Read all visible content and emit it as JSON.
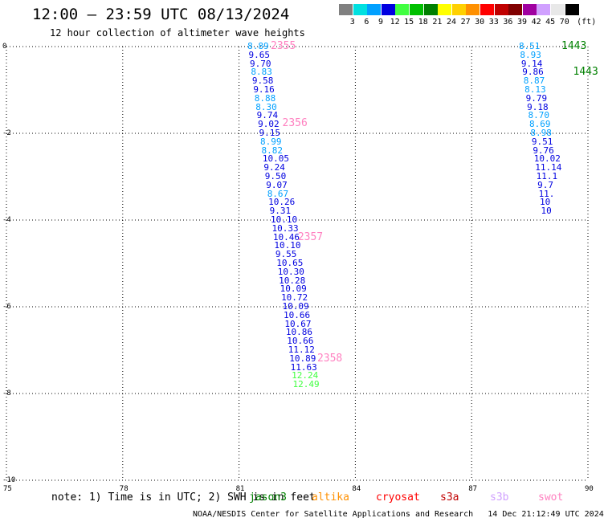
{
  "title": "12:00 — 23:59 UTC 08/13/2024",
  "subtitle": "12 hour collection of altimeter wave heights",
  "legend": {
    "unit": "(ft)",
    "bins": [
      {
        "label": "3",
        "color": "#808080"
      },
      {
        "label": "6",
        "color": "#00e0e0"
      },
      {
        "label": "9",
        "color": "#00a0ff"
      },
      {
        "label": "12",
        "color": "#0000e0"
      },
      {
        "label": "15",
        "color": "#40ff40"
      },
      {
        "label": "18",
        "color": "#00c000"
      },
      {
        "label": "21",
        "color": "#008000"
      },
      {
        "label": "24",
        "color": "#ffff00"
      },
      {
        "label": "27",
        "color": "#ffd000"
      },
      {
        "label": "30",
        "color": "#ff9000"
      },
      {
        "label": "33",
        "color": "#ff0000"
      },
      {
        "label": "36",
        "color": "#c00000"
      },
      {
        "label": "39",
        "color": "#800000"
      },
      {
        "label": "42",
        "color": "#a000a0"
      },
      {
        "label": "45",
        "color": "#d0a0ff"
      },
      {
        "label": "70",
        "color": "#e8e8e8"
      },
      {
        "label": "",
        "color": "#000000"
      }
    ]
  },
  "map": {
    "lon_range": [
      75,
      90
    ],
    "lat_range": [
      -10,
      0
    ],
    "x_ticks": [
      {
        "value": 75,
        "label": "75"
      },
      {
        "value": 78,
        "label": "78"
      },
      {
        "value": 81,
        "label": "81"
      },
      {
        "value": 84,
        "label": "84"
      },
      {
        "value": 87,
        "label": "87"
      },
      {
        "value": 90,
        "label": "90"
      }
    ],
    "y_ticks": [
      {
        "value": 0,
        "label": "0"
      },
      {
        "value": -2,
        "label": "-2"
      },
      {
        "value": -4,
        "label": "-4"
      },
      {
        "value": -6,
        "label": "-6"
      },
      {
        "value": -8,
        "label": "-8"
      },
      {
        "value": -10,
        "label": "-10"
      }
    ],
    "tracks": [
      {
        "color_key": "track_a",
        "points": [
          {
            "lon": 81.3,
            "lat": 0.0,
            "v": "8.89",
            "c": "#00a0ff"
          },
          {
            "lon": 81.33,
            "lat": -0.2,
            "v": "9.65",
            "c": "#0000e0"
          },
          {
            "lon": 81.36,
            "lat": -0.4,
            "v": "9.70",
            "c": "#0000e0"
          },
          {
            "lon": 81.39,
            "lat": -0.6,
            "v": "8.83",
            "c": "#00a0ff"
          },
          {
            "lon": 81.42,
            "lat": -0.8,
            "v": "9.58",
            "c": "#0000e0"
          },
          {
            "lon": 81.45,
            "lat": -1.0,
            "v": "9.16",
            "c": "#0000e0"
          },
          {
            "lon": 81.48,
            "lat": -1.2,
            "v": "8.88",
            "c": "#00a0ff"
          },
          {
            "lon": 81.51,
            "lat": -1.4,
            "v": "8.30",
            "c": "#00a0ff"
          },
          {
            "lon": 81.54,
            "lat": -1.6,
            "v": "9.74",
            "c": "#0000e0"
          },
          {
            "lon": 81.57,
            "lat": -1.8,
            "v": "9.02",
            "c": "#0000e0"
          },
          {
            "lon": 81.6,
            "lat": -2.0,
            "v": "9.15",
            "c": "#0000e0"
          },
          {
            "lon": 81.63,
            "lat": -2.2,
            "v": "8.99",
            "c": "#00a0ff"
          },
          {
            "lon": 81.66,
            "lat": -2.4,
            "v": "8.82",
            "c": "#00a0ff"
          },
          {
            "lon": 81.69,
            "lat": -2.6,
            "v": "10.05",
            "c": "#0000e0"
          },
          {
            "lon": 81.72,
            "lat": -2.8,
            "v": "9.24",
            "c": "#0000e0"
          },
          {
            "lon": 81.75,
            "lat": -3.0,
            "v": "9.50",
            "c": "#0000e0"
          },
          {
            "lon": 81.78,
            "lat": -3.2,
            "v": "9.07",
            "c": "#0000e0"
          },
          {
            "lon": 81.81,
            "lat": -3.4,
            "v": "8.67",
            "c": "#00a0ff"
          },
          {
            "lon": 81.84,
            "lat": -3.6,
            "v": "10.26",
            "c": "#0000e0"
          },
          {
            "lon": 81.87,
            "lat": -3.8,
            "v": "9.31",
            "c": "#0000e0"
          },
          {
            "lon": 81.9,
            "lat": -4.0,
            "v": "10.10",
            "c": "#0000e0"
          },
          {
            "lon": 81.93,
            "lat": -4.2,
            "v": "10.33",
            "c": "#0000e0"
          },
          {
            "lon": 81.96,
            "lat": -4.4,
            "v": "10.46",
            "c": "#0000e0"
          },
          {
            "lon": 81.99,
            "lat": -4.6,
            "v": "10.10",
            "c": "#0000e0"
          },
          {
            "lon": 82.02,
            "lat": -4.8,
            "v": "9.55",
            "c": "#0000e0"
          },
          {
            "lon": 82.05,
            "lat": -5.0,
            "v": "10.65",
            "c": "#0000e0"
          },
          {
            "lon": 82.08,
            "lat": -5.2,
            "v": "10.30",
            "c": "#0000e0"
          },
          {
            "lon": 82.11,
            "lat": -5.4,
            "v": "10.28",
            "c": "#0000e0"
          },
          {
            "lon": 82.14,
            "lat": -5.6,
            "v": "10.09",
            "c": "#0000e0"
          },
          {
            "lon": 82.17,
            "lat": -5.8,
            "v": "10.72",
            "c": "#0000e0"
          },
          {
            "lon": 82.2,
            "lat": -6.0,
            "v": "10.09",
            "c": "#0000e0"
          },
          {
            "lon": 82.23,
            "lat": -6.2,
            "v": "10.66",
            "c": "#0000e0"
          },
          {
            "lon": 82.26,
            "lat": -6.4,
            "v": "10.67",
            "c": "#0000e0"
          },
          {
            "lon": 82.29,
            "lat": -6.6,
            "v": "10.86",
            "c": "#0000e0"
          },
          {
            "lon": 82.32,
            "lat": -6.8,
            "v": "10.66",
            "c": "#0000e0"
          },
          {
            "lon": 82.35,
            "lat": -7.0,
            "v": "11.12",
            "c": "#0000e0"
          },
          {
            "lon": 82.38,
            "lat": -7.2,
            "v": "10.89",
            "c": "#0000e0"
          },
          {
            "lon": 82.41,
            "lat": -7.4,
            "v": "11.63",
            "c": "#0000e0"
          },
          {
            "lon": 82.44,
            "lat": -7.6,
            "v": "12.24",
            "c": "#40ff40"
          },
          {
            "lon": 82.47,
            "lat": -7.8,
            "v": "12.49",
            "c": "#40ff40"
          }
        ]
      },
      {
        "color_key": "track_b",
        "points": [
          {
            "lon": 88.3,
            "lat": 0.0,
            "v": "8.51",
            "c": "#00a0ff"
          },
          {
            "lon": 88.33,
            "lat": -0.2,
            "v": "8.93",
            "c": "#00a0ff"
          },
          {
            "lon": 88.36,
            "lat": -0.4,
            "v": "9.14",
            "c": "#0000e0"
          },
          {
            "lon": 88.39,
            "lat": -0.6,
            "v": "9.86",
            "c": "#0000e0"
          },
          {
            "lon": 88.42,
            "lat": -0.8,
            "v": "8.87",
            "c": "#00a0ff"
          },
          {
            "lon": 88.45,
            "lat": -1.0,
            "v": "8.13",
            "c": "#00a0ff"
          },
          {
            "lon": 88.48,
            "lat": -1.2,
            "v": "9.79",
            "c": "#0000e0"
          },
          {
            "lon": 88.51,
            "lat": -1.4,
            "v": "9.18",
            "c": "#0000e0"
          },
          {
            "lon": 88.54,
            "lat": -1.6,
            "v": "8.70",
            "c": "#00a0ff"
          },
          {
            "lon": 88.57,
            "lat": -1.8,
            "v": "8.69",
            "c": "#00a0ff"
          },
          {
            "lon": 88.6,
            "lat": -2.0,
            "v": "8.98",
            "c": "#00a0ff"
          },
          {
            "lon": 88.63,
            "lat": -2.2,
            "v": "9.51",
            "c": "#0000e0"
          },
          {
            "lon": 88.66,
            "lat": -2.4,
            "v": "9.76",
            "c": "#0000e0"
          },
          {
            "lon": 88.69,
            "lat": -2.6,
            "v": "10.02",
            "c": "#0000e0"
          },
          {
            "lon": 88.72,
            "lat": -2.8,
            "v": "11.14",
            "c": "#0000e0"
          },
          {
            "lon": 88.75,
            "lat": -3.0,
            "v": "11.1",
            "c": "#0000e0"
          },
          {
            "lon": 88.78,
            "lat": -3.2,
            "v": "9.7",
            "c": "#0000e0"
          },
          {
            "lon": 88.81,
            "lat": -3.4,
            "v": "11.",
            "c": "#0000e0"
          },
          {
            "lon": 88.84,
            "lat": -3.6,
            "v": "10",
            "c": "#0000e0"
          },
          {
            "lon": 88.87,
            "lat": -3.8,
            "v": "10",
            "c": "#0000e0"
          }
        ]
      }
    ],
    "time_labels": [
      {
        "lon": 81.9,
        "lat": 0.0,
        "t": "2355",
        "c": "#ff80c0"
      },
      {
        "lon": 82.2,
        "lat": -1.78,
        "t": "2356",
        "c": "#ff80c0"
      },
      {
        "lon": 82.6,
        "lat": -4.4,
        "t": "2357",
        "c": "#ff80c0"
      },
      {
        "lon": 83.1,
        "lat": -7.2,
        "t": "2358",
        "c": "#ff80c0"
      },
      {
        "lon": 89.4,
        "lat": 0.0,
        "t": "1443",
        "c": "#008000"
      },
      {
        "lon": 89.7,
        "lat": -0.6,
        "t": "1443",
        "c": "#008000"
      }
    ]
  },
  "note": "note: 1) Time is in UTC; 2) SWH is in feet",
  "satellites": [
    {
      "name": "jason3",
      "color": "#008000",
      "left": 310
    },
    {
      "name": "altika",
      "color": "#ff9000",
      "left": 388
    },
    {
      "name": "cryosat",
      "color": "#ff0000",
      "left": 468
    },
    {
      "name": "s3a",
      "color": "#c00000",
      "left": 548
    },
    {
      "name": "s3b",
      "color": "#d0a0ff",
      "left": 610
    },
    {
      "name": "swot",
      "color": "#ff80c0",
      "left": 670
    }
  ],
  "credit": "NOAA/NESDIS Center for Satellite Applications and Research   14 Dec 21:12:49 UTC 2024"
}
